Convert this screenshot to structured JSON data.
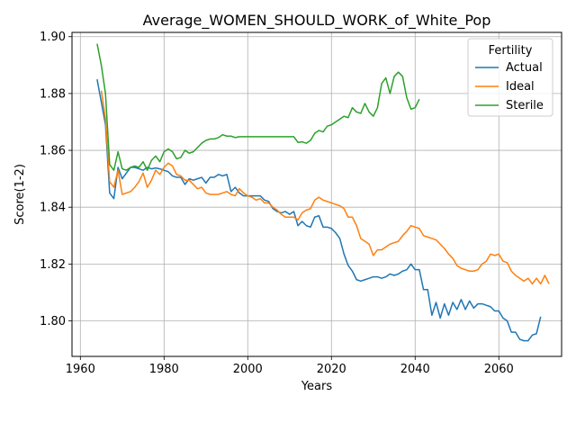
{
  "chart_data": {
    "type": "line",
    "title": "Average_WOMEN_SHOULD_WORK_of_White_Pop",
    "xlabel": "Years",
    "ylabel": "Score(1-2)",
    "xlim": [
      1958,
      2075
    ],
    "ylim": [
      1.7875,
      1.9015
    ],
    "xticks": [
      1960,
      1980,
      2000,
      2020,
      2040,
      2060
    ],
    "yticks": [
      1.8,
      1.82,
      1.84,
      1.86,
      1.88,
      1.9
    ],
    "ytick_labels": [
      "1.80",
      "1.82",
      "1.84",
      "1.86",
      "1.88",
      "1.90"
    ],
    "grid": true,
    "legend": {
      "title": "Fertility",
      "placement": "top-right"
    },
    "series": [
      {
        "name": "Actual",
        "color": "#1f77b4",
        "points": [
          [
            1964,
            1.885
          ],
          [
            1965,
            1.877
          ],
          [
            1966,
            1.869
          ],
          [
            1967,
            1.845
          ],
          [
            1968,
            1.843
          ],
          [
            1969,
            1.854
          ],
          [
            1970,
            1.85
          ],
          [
            1971,
            1.852
          ],
          [
            1972,
            1.854
          ],
          [
            1973,
            1.854
          ],
          [
            1974,
            1.8535
          ],
          [
            1975,
            1.853
          ],
          [
            1976,
            1.854
          ],
          [
            1977,
            1.8535
          ],
          [
            1978,
            1.8538
          ],
          [
            1979,
            1.8535
          ],
          [
            1980,
            1.853
          ],
          [
            1981,
            1.8525
          ],
          [
            1982,
            1.851
          ],
          [
            1983,
            1.8505
          ],
          [
            1984,
            1.8505
          ],
          [
            1985,
            1.848
          ],
          [
            1986,
            1.85
          ],
          [
            1987,
            1.8495
          ],
          [
            1988,
            1.85
          ],
          [
            1989,
            1.8505
          ],
          [
            1990,
            1.8485
          ],
          [
            1991,
            1.8505
          ],
          [
            1992,
            1.8505
          ],
          [
            1993,
            1.8515
          ],
          [
            1994,
            1.851
          ],
          [
            1995,
            1.8515
          ],
          [
            1996,
            1.8455
          ],
          [
            1997,
            1.847
          ],
          [
            1998,
            1.845
          ],
          [
            1999,
            1.844
          ],
          [
            2000,
            1.844
          ],
          [
            2001,
            1.844
          ],
          [
            2002,
            1.844
          ],
          [
            2003,
            1.844
          ],
          [
            2004,
            1.8425
          ],
          [
            2005,
            1.842
          ],
          [
            2006,
            1.8395
          ],
          [
            2007,
            1.8385
          ],
          [
            2008,
            1.838
          ],
          [
            2009,
            1.8385
          ],
          [
            2010,
            1.8375
          ],
          [
            2011,
            1.8385
          ],
          [
            2012,
            1.8335
          ],
          [
            2013,
            1.835
          ],
          [
            2014,
            1.8335
          ],
          [
            2015,
            1.833
          ],
          [
            2016,
            1.8365
          ],
          [
            2017,
            1.837
          ],
          [
            2018,
            1.833
          ],
          [
            2019,
            1.833
          ],
          [
            2020,
            1.8325
          ],
          [
            2021,
            1.831
          ],
          [
            2022,
            1.829
          ],
          [
            2023,
            1.8235
          ],
          [
            2024,
            1.8195
          ],
          [
            2025,
            1.8175
          ],
          [
            2026,
            1.8145
          ],
          [
            2027,
            1.814
          ],
          [
            2028,
            1.8145
          ],
          [
            2029,
            1.815
          ],
          [
            2030,
            1.8155
          ],
          [
            2031,
            1.8155
          ],
          [
            2032,
            1.815
          ],
          [
            2033,
            1.8155
          ],
          [
            2034,
            1.8165
          ],
          [
            2035,
            1.816
          ],
          [
            2036,
            1.8165
          ],
          [
            2037,
            1.8175
          ],
          [
            2038,
            1.818
          ],
          [
            2039,
            1.82
          ],
          [
            2040,
            1.818
          ],
          [
            2041,
            1.818
          ],
          [
            2042,
            1.811
          ],
          [
            2043,
            1.811
          ],
          [
            2044,
            1.802
          ],
          [
            2045,
            1.8065
          ],
          [
            2046,
            1.801
          ],
          [
            2047,
            1.806
          ],
          [
            2048,
            1.802
          ],
          [
            2049,
            1.8065
          ],
          [
            2050,
            1.804
          ],
          [
            2051,
            1.8075
          ],
          [
            2052,
            1.804
          ],
          [
            2053,
            1.807
          ],
          [
            2054,
            1.8045
          ],
          [
            2055,
            1.806
          ],
          [
            2056,
            1.806
          ],
          [
            2057,
            1.8055
          ],
          [
            2058,
            1.805
          ],
          [
            2059,
            1.8035
          ],
          [
            2060,
            1.8035
          ],
          [
            2061,
            1.801
          ],
          [
            2062,
            1.8
          ],
          [
            2063,
            1.796
          ],
          [
            2064,
            1.796
          ],
          [
            2065,
            1.7935
          ],
          [
            2066,
            1.793
          ],
          [
            2067,
            1.793
          ],
          [
            2068,
            1.795
          ],
          [
            2069,
            1.7955
          ],
          [
            2070,
            1.8015
          ]
        ]
      },
      {
        "name": "Ideal",
        "color": "#ff7f0e",
        "points": [
          [
            1965,
            1.881
          ],
          [
            1966,
            1.871
          ],
          [
            1967,
            1.849
          ],
          [
            1968,
            1.847
          ],
          [
            1969,
            1.853
          ],
          [
            1970,
            1.8445
          ],
          [
            1971,
            1.845
          ],
          [
            1972,
            1.8455
          ],
          [
            1973,
            1.847
          ],
          [
            1974,
            1.849
          ],
          [
            1975,
            1.852
          ],
          [
            1976,
            1.847
          ],
          [
            1977,
            1.8495
          ],
          [
            1978,
            1.853
          ],
          [
            1979,
            1.8515
          ],
          [
            1980,
            1.854
          ],
          [
            1981,
            1.8555
          ],
          [
            1982,
            1.8545
          ],
          [
            1983,
            1.8515
          ],
          [
            1984,
            1.851
          ],
          [
            1985,
            1.8495
          ],
          [
            1986,
            1.8495
          ],
          [
            1987,
            1.848
          ],
          [
            1988,
            1.8465
          ],
          [
            1989,
            1.847
          ],
          [
            1990,
            1.845
          ],
          [
            1991,
            1.8445
          ],
          [
            1992,
            1.8445
          ],
          [
            1993,
            1.8445
          ],
          [
            1994,
            1.845
          ],
          [
            1995,
            1.8455
          ],
          [
            1996,
            1.8445
          ],
          [
            1997,
            1.844
          ],
          [
            1998,
            1.8465
          ],
          [
            1999,
            1.845
          ],
          [
            2000,
            1.844
          ],
          [
            2001,
            1.8435
          ],
          [
            2002,
            1.8425
          ],
          [
            2003,
            1.843
          ],
          [
            2004,
            1.8415
          ],
          [
            2005,
            1.8415
          ],
          [
            2006,
            1.84
          ],
          [
            2007,
            1.839
          ],
          [
            2008,
            1.8375
          ],
          [
            2009,
            1.8365
          ],
          [
            2010,
            1.8365
          ],
          [
            2011,
            1.8365
          ],
          [
            2012,
            1.8355
          ],
          [
            2013,
            1.838
          ],
          [
            2014,
            1.839
          ],
          [
            2015,
            1.8395
          ],
          [
            2016,
            1.8425
          ],
          [
            2017,
            1.8435
          ],
          [
            2018,
            1.8425
          ],
          [
            2019,
            1.842
          ],
          [
            2020,
            1.8415
          ],
          [
            2021,
            1.841
          ],
          [
            2022,
            1.8405
          ],
          [
            2023,
            1.8395
          ],
          [
            2024,
            1.8365
          ],
          [
            2025,
            1.8365
          ],
          [
            2026,
            1.8335
          ],
          [
            2027,
            1.829
          ],
          [
            2028,
            1.828
          ],
          [
            2029,
            1.827
          ],
          [
            2030,
            1.823
          ],
          [
            2031,
            1.825
          ],
          [
            2032,
            1.825
          ],
          [
            2033,
            1.826
          ],
          [
            2034,
            1.827
          ],
          [
            2035,
            1.8275
          ],
          [
            2036,
            1.828
          ],
          [
            2037,
            1.83
          ],
          [
            2038,
            1.8315
          ],
          [
            2039,
            1.8335
          ],
          [
            2040,
            1.833
          ],
          [
            2041,
            1.8325
          ],
          [
            2042,
            1.83
          ],
          [
            2043,
            1.8295
          ],
          [
            2044,
            1.829
          ],
          [
            2045,
            1.8285
          ],
          [
            2046,
            1.827
          ],
          [
            2047,
            1.8255
          ],
          [
            2048,
            1.8235
          ],
          [
            2049,
            1.822
          ],
          [
            2050,
            1.8195
          ],
          [
            2051,
            1.8185
          ],
          [
            2052,
            1.818
          ],
          [
            2053,
            1.8175
          ],
          [
            2054,
            1.8175
          ],
          [
            2055,
            1.818
          ],
          [
            2056,
            1.82
          ],
          [
            2057,
            1.821
          ],
          [
            2058,
            1.8235
          ],
          [
            2059,
            1.823
          ],
          [
            2060,
            1.8235
          ],
          [
            2061,
            1.821
          ],
          [
            2062,
            1.8205
          ],
          [
            2063,
            1.8175
          ],
          [
            2064,
            1.816
          ],
          [
            2065,
            1.815
          ],
          [
            2066,
            1.814
          ],
          [
            2067,
            1.815
          ],
          [
            2068,
            1.813
          ],
          [
            2069,
            1.815
          ],
          [
            2070,
            1.813
          ],
          [
            2071,
            1.816
          ],
          [
            2072,
            1.813
          ]
        ]
      },
      {
        "name": "Sterile",
        "color": "#2ca02c",
        "points": [
          [
            1964,
            1.8975
          ],
          [
            1965,
            1.89
          ],
          [
            1966,
            1.88
          ],
          [
            1967,
            1.855
          ],
          [
            1968,
            1.853
          ],
          [
            1969,
            1.8595
          ],
          [
            1970,
            1.8535
          ],
          [
            1971,
            1.853
          ],
          [
            1972,
            1.854
          ],
          [
            1973,
            1.8545
          ],
          [
            1974,
            1.854
          ],
          [
            1975,
            1.856
          ],
          [
            1976,
            1.853
          ],
          [
            1977,
            1.8565
          ],
          [
            1978,
            1.858
          ],
          [
            1979,
            1.856
          ],
          [
            1980,
            1.8595
          ],
          [
            1981,
            1.8605
          ],
          [
            1982,
            1.8595
          ],
          [
            1983,
            1.857
          ],
          [
            1984,
            1.8575
          ],
          [
            1985,
            1.86
          ],
          [
            1986,
            1.859
          ],
          [
            1987,
            1.8595
          ],
          [
            1988,
            1.861
          ],
          [
            1989,
            1.8625
          ],
          [
            1990,
            1.8635
          ],
          [
            1991,
            1.864
          ],
          [
            1992,
            1.864
          ],
          [
            1993,
            1.8645
          ],
          [
            1994,
            1.8655
          ],
          [
            1995,
            1.865
          ],
          [
            1996,
            1.865
          ],
          [
            1997,
            1.8645
          ],
          [
            1998,
            1.8648
          ],
          [
            1999,
            1.8648
          ],
          [
            2000,
            1.8648
          ],
          [
            2001,
            1.8648
          ],
          [
            2002,
            1.8648
          ],
          [
            2003,
            1.8648
          ],
          [
            2004,
            1.8648
          ],
          [
            2005,
            1.8648
          ],
          [
            2006,
            1.8648
          ],
          [
            2007,
            1.8648
          ],
          [
            2008,
            1.8648
          ],
          [
            2009,
            1.8648
          ],
          [
            2010,
            1.8648
          ],
          [
            2011,
            1.8648
          ],
          [
            2012,
            1.8628
          ],
          [
            2013,
            1.863
          ],
          [
            2014,
            1.8625
          ],
          [
            2015,
            1.8635
          ],
          [
            2016,
            1.866
          ],
          [
            2017,
            1.867
          ],
          [
            2018,
            1.8665
          ],
          [
            2019,
            1.8685
          ],
          [
            2020,
            1.869
          ],
          [
            2021,
            1.87
          ],
          [
            2022,
            1.871
          ],
          [
            2023,
            1.872
          ],
          [
            2024,
            1.8715
          ],
          [
            2025,
            1.875
          ],
          [
            2026,
            1.8735
          ],
          [
            2027,
            1.873
          ],
          [
            2028,
            1.8765
          ],
          [
            2029,
            1.8735
          ],
          [
            2030,
            1.872
          ],
          [
            2031,
            1.875
          ],
          [
            2032,
            1.8835
          ],
          [
            2033,
            1.8855
          ],
          [
            2034,
            1.88
          ],
          [
            2035,
            1.886
          ],
          [
            2036,
            1.8875
          ],
          [
            2037,
            1.886
          ],
          [
            2038,
            1.8785
          ],
          [
            2039,
            1.8745
          ],
          [
            2040,
            1.875
          ],
          [
            2041,
            1.878
          ]
        ]
      }
    ]
  }
}
